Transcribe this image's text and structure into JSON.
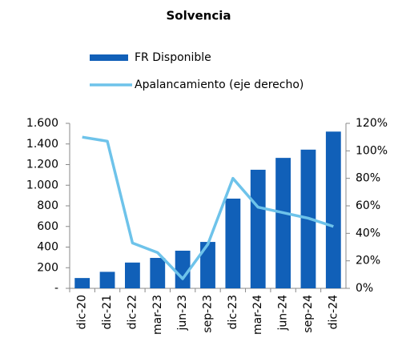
{
  "chart_data": {
    "type": "bar_line",
    "title": "Solvencia",
    "categories": [
      "dic-20",
      "dic-21",
      "dic-22",
      "mar-23",
      "jun-23",
      "sep-23",
      "dic-23",
      "mar-24",
      "jun-24",
      "sep-24",
      "dic-24"
    ],
    "series": [
      {
        "name": "FR Disponible",
        "type": "bar",
        "color": "#1160b8",
        "values": [
          100,
          160,
          250,
          295,
          365,
          450,
          870,
          1150,
          1265,
          1345,
          1520
        ]
      },
      {
        "name": "Apalancamiento (eje derecho)",
        "type": "line",
        "axis": "y2",
        "color": "#6ec3ea",
        "values": [
          110,
          107,
          33,
          26,
          7,
          32,
          80,
          59,
          55,
          51,
          45
        ]
      }
    ],
    "ylim": [
      0,
      1600
    ],
    "yticks": [
      {
        "value": 0,
        "label": "-"
      },
      200,
      400,
      600,
      800,
      {
        "value": 1000,
        "label": "1.000"
      },
      {
        "value": 1200,
        "label": "1.200"
      },
      {
        "value": 1400,
        "label": "1.400"
      },
      {
        "value": 1600,
        "label": "1.600"
      }
    ],
    "y2lim": [
      0,
      120
    ],
    "y2ticks": [
      {
        "value": 0,
        "label": "0%"
      },
      {
        "value": 20,
        "label": "20%"
      },
      {
        "value": 40,
        "label": "40%"
      },
      {
        "value": 60,
        "label": "60%"
      },
      {
        "value": 80,
        "label": "80%"
      },
      {
        "value": 100,
        "label": "100%"
      },
      {
        "value": 120,
        "label": "120%"
      }
    ],
    "grid": false,
    "legend": "top"
  }
}
